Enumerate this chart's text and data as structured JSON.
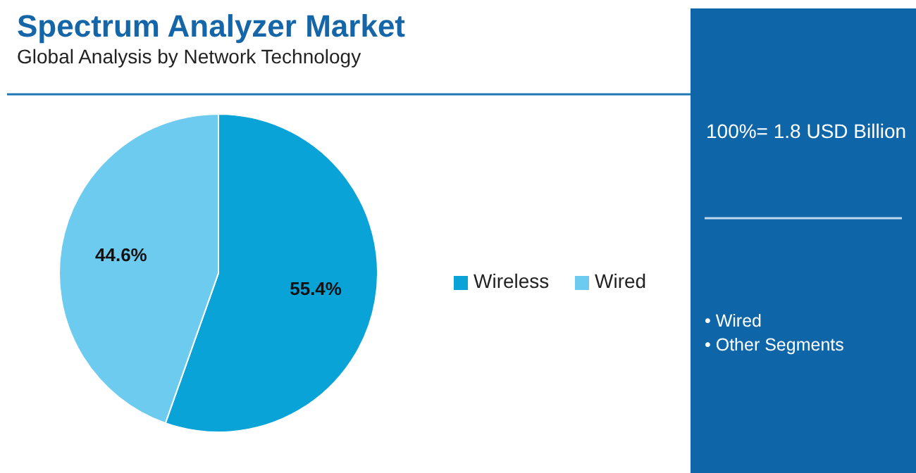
{
  "chart_data": {
    "type": "pie",
    "title": "Spectrum Analyzer Market",
    "subtitle": "Global Analysis by Network Technology",
    "categories": [
      "Wireless",
      "Wired"
    ],
    "values": [
      55.4,
      44.6
    ],
    "colors": [
      "#0aa3d8",
      "#6dcbef"
    ],
    "value_labels": [
      "55.4%",
      "44.6%"
    ],
    "legend": "right",
    "annotations": [
      "100%= 1.8 USD Billion",
      "• Wired",
      "• Other Segments"
    ]
  }
}
